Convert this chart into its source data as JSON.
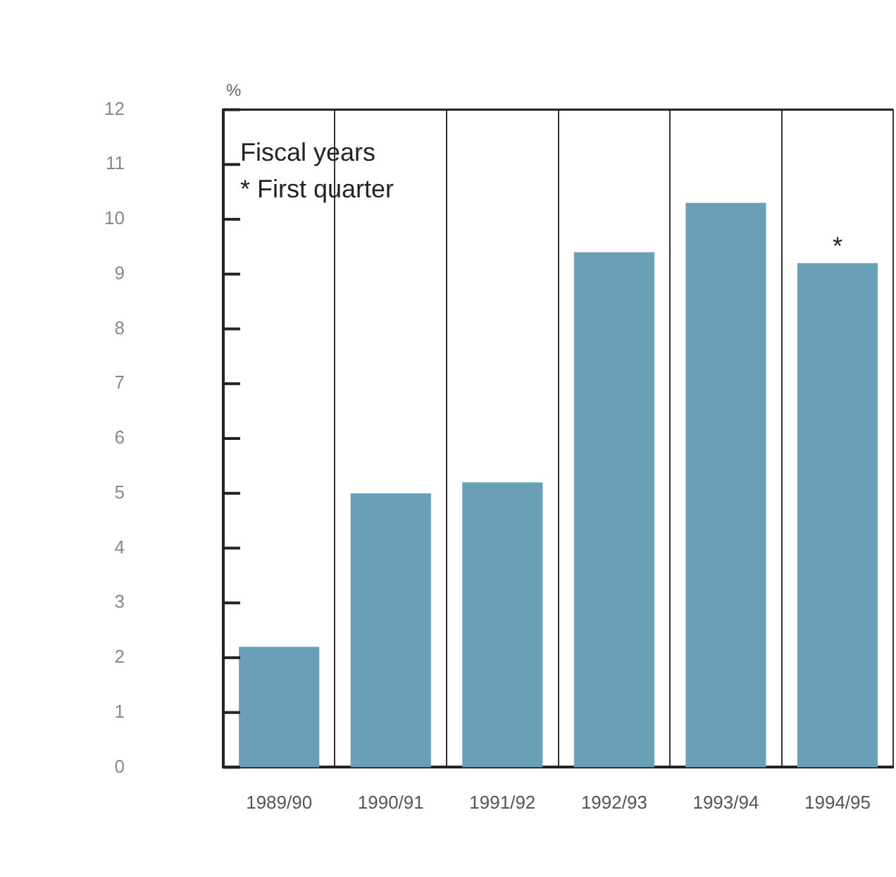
{
  "chart_data": {
    "type": "bar",
    "ylabel": "%",
    "categories": [
      "1989/90",
      "1990/91",
      "1991/92",
      "1992/93",
      "1993/94",
      "1994/95"
    ],
    "values": [
      2.2,
      5.0,
      5.2,
      9.4,
      10.3,
      9.2
    ],
    "color": "#6a9fb8",
    "ylim": [
      0,
      12
    ],
    "yticks": [
      0,
      1,
      2,
      3,
      4,
      5,
      6,
      7,
      8,
      9,
      10,
      11,
      12
    ],
    "grid": "x",
    "annotations": [
      "Fiscal years",
      "* First quarter",
      {
        "text": "*",
        "x": "1994/95",
        "y": 9.2
      }
    ]
  }
}
